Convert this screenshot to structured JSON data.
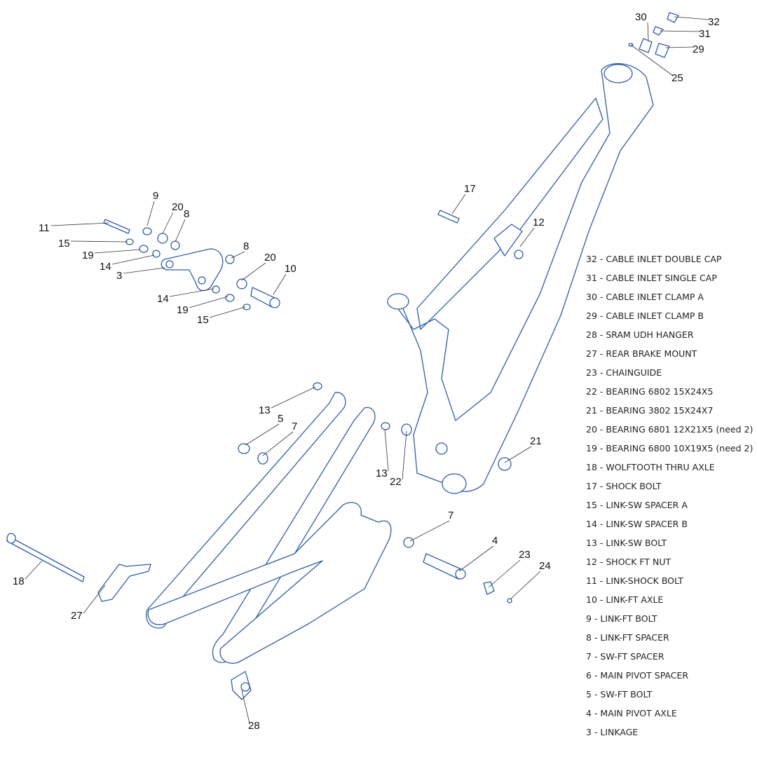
{
  "diagram": {
    "colors": {
      "outline": "#2f5ea6",
      "fill": "#ffffff",
      "shade": "#dfe8f5",
      "leader": "#333333",
      "text": "#222222"
    },
    "callouts": [
      "32",
      "31",
      "30",
      "29",
      "25",
      "17",
      "12",
      "9",
      "20",
      "8",
      "11",
      "15",
      "19",
      "14",
      "3",
      "8",
      "20",
      "10",
      "14",
      "19",
      "15",
      "13",
      "5",
      "7",
      "13",
      "22",
      "21",
      "7",
      "4",
      "23",
      "24",
      "18",
      "27",
      "28"
    ]
  },
  "legend": {
    "items": [
      "32 - CABLE INLET DOUBLE CAP",
      "31 - CABLE INLET SINGLE CAP",
      "30 - CABLE INLET CLAMP A",
      "29 - CABLE INLET CLAMP B",
      "28 - SRAM UDH HANGER",
      "27 - REAR BRAKE MOUNT",
      "23 - CHAINGUIDE",
      "22 - BEARING 6802 15X24X5",
      "21 - BEARING 3802 15X24X7",
      "20 - BEARING 6801 12X21X5 (need 2)",
      "19 - BEARING 6800 10X19X5 (need 2)",
      "18 - WOLFTOOTH THRU AXLE",
      "17 - SHOCK BOLT",
      "15 - LINK-SW SPACER A",
      "14 - LINK-SW SPACER B",
      "13 - LINK-SW BOLT",
      "12 - SHOCK FT NUT",
      "11 - LINK-SHOCK BOLT",
      "10 - LINK-FT AXLE",
      "9 - LINK-FT BOLT",
      "8 - LINK-FT SPACER",
      "7 - SW-FT SPACER",
      "6 - MAIN PIVOT SPACER",
      "5 - SW-FT BOLT",
      "4 - MAIN PIVOT AXLE",
      "3 - LINKAGE"
    ]
  }
}
